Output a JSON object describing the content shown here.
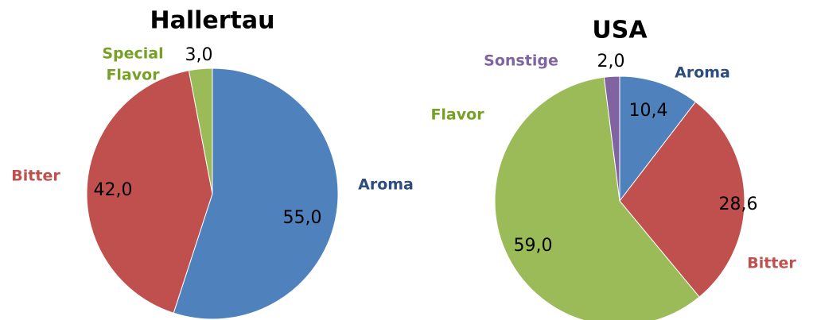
{
  "chart_data": [
    {
      "type": "pie",
      "title": "Hallertau",
      "categories": [
        "Aroma",
        "Bitter",
        "Special Flavor"
      ],
      "values": [
        55.0,
        42.0,
        3.0
      ],
      "value_labels": [
        "55,0",
        "42,0",
        "3,0"
      ],
      "colors": [
        "#4f81bd",
        "#c0504d",
        "#9bbb59"
      ],
      "label_colors": [
        "#2c4d7e",
        "#c0504d",
        "#76a125"
      ]
    },
    {
      "type": "pie",
      "title": "USA",
      "categories": [
        "Aroma",
        "Bitter",
        "Flavor",
        "Sonstige"
      ],
      "values": [
        10.4,
        28.6,
        59.0,
        2.0
      ],
      "value_labels": [
        "10,4",
        "28,6",
        "59,0",
        "2,0"
      ],
      "colors": [
        "#4f81bd",
        "#c0504d",
        "#9bbb59",
        "#8064a2"
      ],
      "label_colors": [
        "#2c4d7e",
        "#c0504d",
        "#76a125",
        "#8064a2"
      ]
    }
  ]
}
